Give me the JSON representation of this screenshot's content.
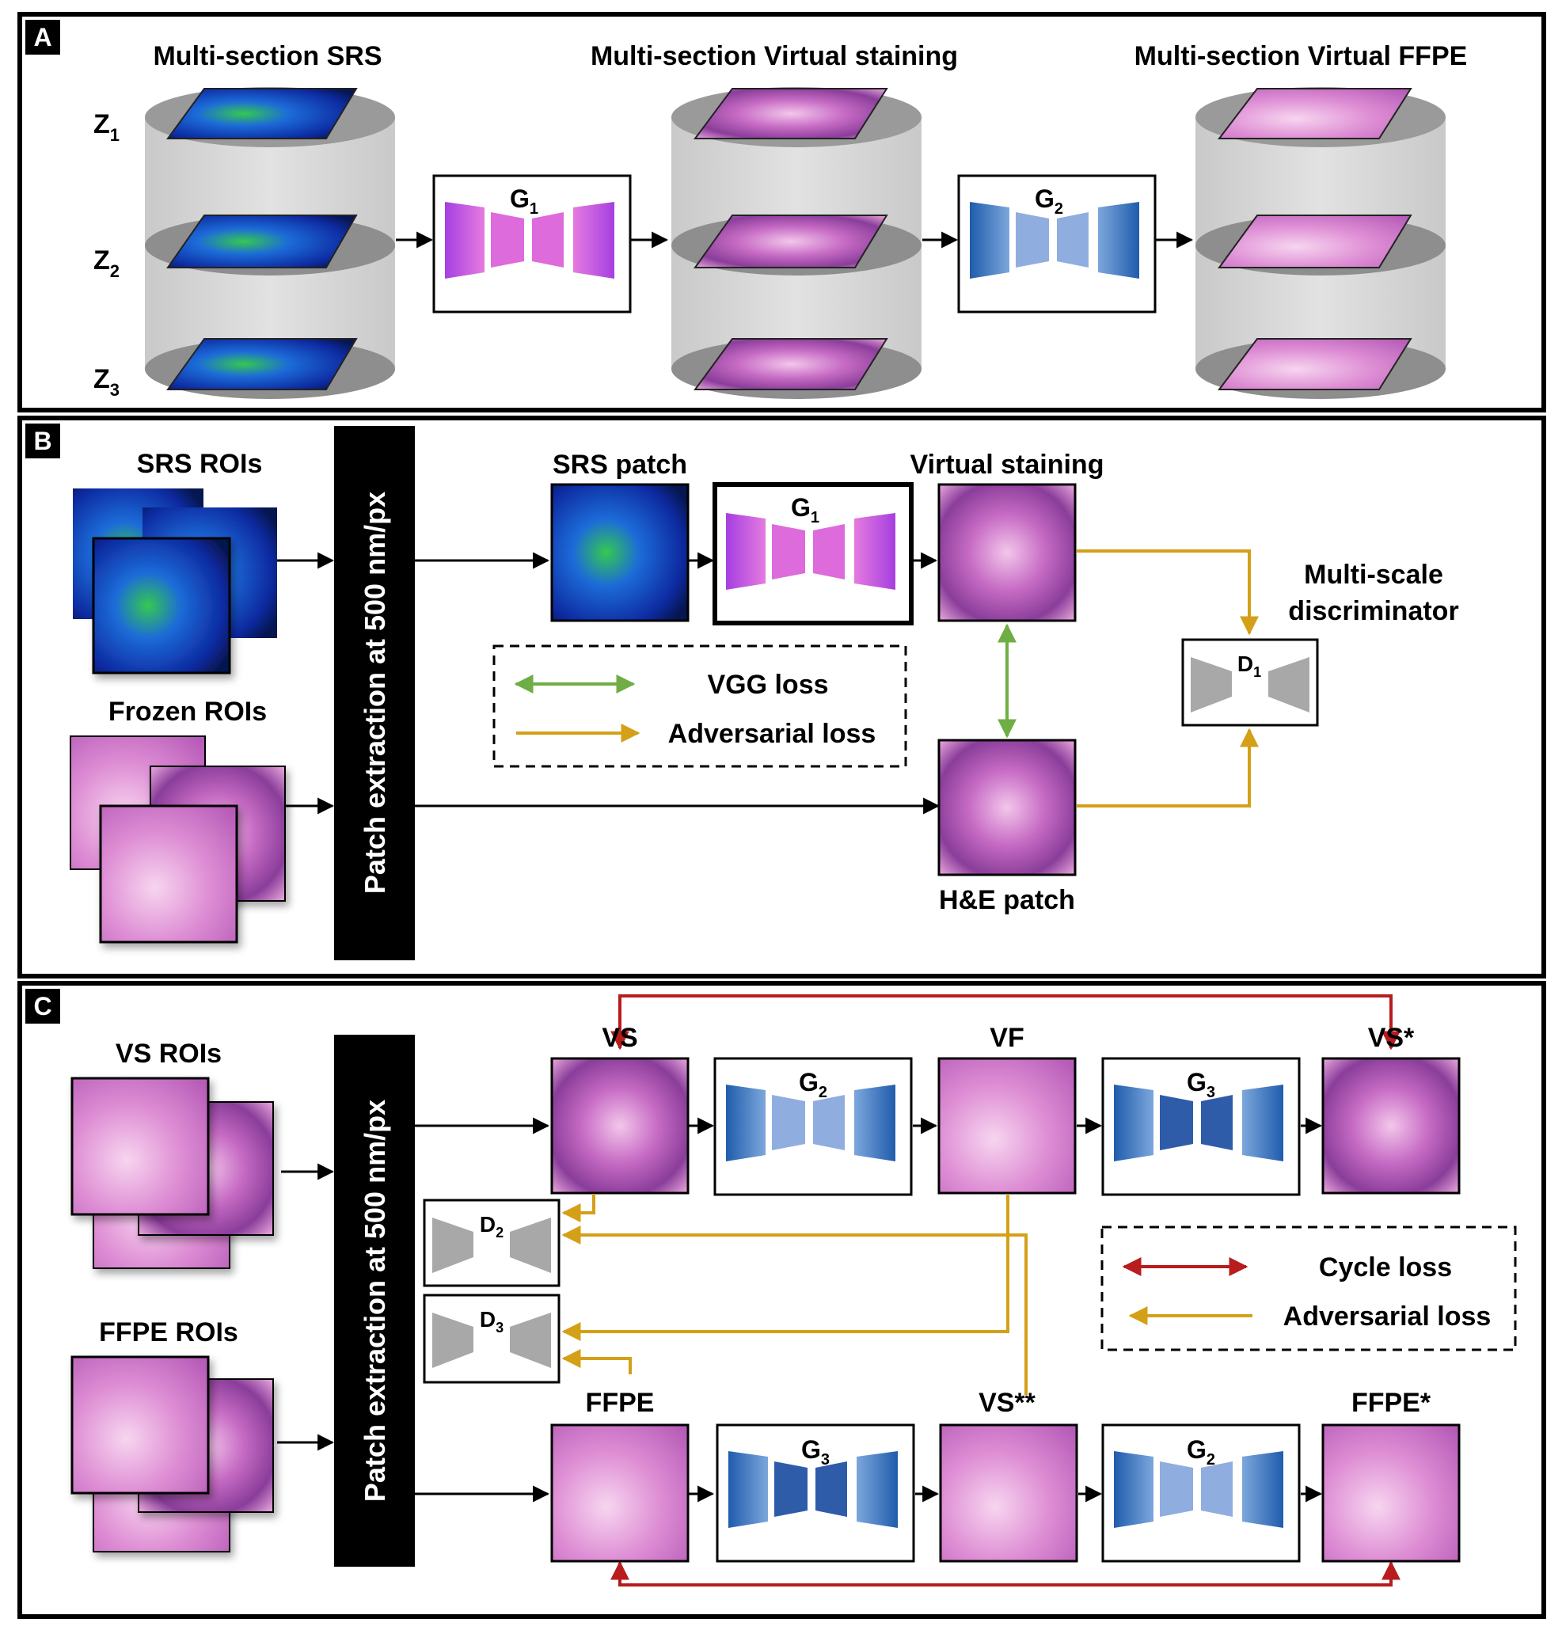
{
  "panel_a": {
    "letter": "A",
    "title_srs": "Multi-section SRS",
    "title_vs": "Multi-section Virtual staining",
    "title_ffpe": "Multi-section Virtual FFPE",
    "z_labels": [
      "Z",
      "Z",
      "Z"
    ],
    "z_subs": [
      "1",
      "2",
      "3"
    ],
    "g1": "G",
    "g1_sub": "1",
    "g2": "G",
    "g2_sub": "2"
  },
  "panel_b": {
    "letter": "B",
    "srs_rois": "SRS ROIs",
    "frozen_rois": "Frozen ROIs",
    "patch_extraction": "Patch extraction at 500 nm/px",
    "srs_patch": "SRS patch",
    "virtual_staining": "Virtual staining",
    "he_patch": "H&E patch",
    "g1": "G",
    "g1_sub": "1",
    "d1": "D",
    "d1_sub": "1",
    "discriminator_line1": "Multi-scale",
    "discriminator_line2": "discriminator",
    "legend_vgg": "VGG loss",
    "legend_adv": "Adversarial loss"
  },
  "panel_c": {
    "letter": "C",
    "vs_rois": "VS ROIs",
    "ffpe_rois": "FFPE ROIs",
    "patch_extraction": "Patch extraction at 500 nm/px",
    "vs": "VS",
    "vf": "VF",
    "vs_star": "VS*",
    "ffpe": "FFPE",
    "vs_2star": "VS**",
    "ffpe_star": "FFPE*",
    "g2": "G",
    "g2_sub": "2",
    "g3": "G",
    "g3_sub": "3",
    "d2": "D",
    "d2_sub": "2",
    "d3": "D",
    "d3_sub": "3",
    "legend_cycle": "Cycle loss",
    "legend_adv": "Adversarial loss"
  },
  "colors": {
    "gold": "#D4A017",
    "green": "#6FAE44",
    "red": "#B81C1C",
    "purple": "#C455E6",
    "blue": "#2E6CB8",
    "lightblue": "#90ADDF"
  }
}
